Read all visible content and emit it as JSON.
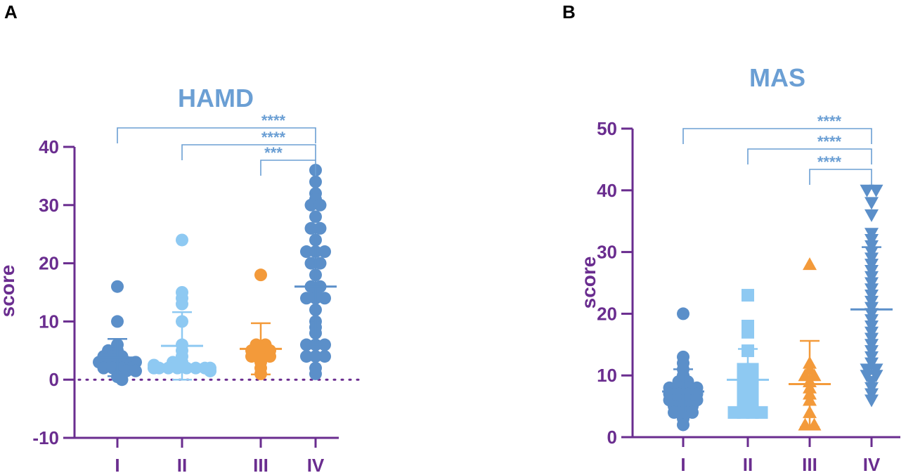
{
  "panels": {
    "a_label": "A",
    "b_label": "B"
  },
  "colors": {
    "axis": "#6a2d8f",
    "title": "#6b9fd4",
    "group1": "#5b8fc9",
    "group2": "#8ec9f2",
    "group3": "#f39a3a",
    "group4": "#5b8fc9",
    "bracket": "#6b9fd4"
  },
  "chart_data": [
    {
      "type": "scatter",
      "title": "HAMD",
      "xlabel": "",
      "ylabel": "score",
      "ylim": [
        -10,
        40
      ],
      "yticks": [
        -10,
        0,
        10,
        20,
        30,
        40
      ],
      "ytick_labels": [
        "-10",
        "0",
        "10",
        "20",
        "30",
        "40"
      ],
      "categories": [
        "I",
        "II",
        "III",
        "IV"
      ],
      "reference_line": 0,
      "series": [
        {
          "name": "I",
          "marker": "circle",
          "mean": 3.8,
          "sd_upper": 7,
          "sd_lower": 0.6,
          "values": [
            16,
            10,
            6,
            5,
            5,
            4.5,
            4,
            4,
            4,
            3.5,
            3.5,
            3,
            3,
            3,
            3,
            3,
            2.5,
            2.5,
            2,
            2,
            2,
            2,
            1.5,
            1.5,
            1,
            0.5,
            0
          ]
        },
        {
          "name": "II",
          "marker": "circle",
          "mean": 5.8,
          "sd_upper": 11.6,
          "sd_lower": 0,
          "values": [
            24,
            15,
            14,
            13,
            10,
            6,
            5,
            4,
            3,
            3,
            2.5,
            2,
            2,
            2,
            2,
            2,
            2,
            2,
            2,
            2,
            1.5,
            1.5
          ]
        },
        {
          "name": "III",
          "marker": "circle",
          "mean": 5.3,
          "sd_upper": 9.7,
          "sd_lower": 0.9,
          "values": [
            18,
            6,
            6,
            5,
            5,
            5,
            4,
            4,
            4,
            3,
            2,
            1
          ]
        },
        {
          "name": "IV",
          "marker": "circle",
          "mean": 16,
          "sd_upper": 25.8,
          "sd_lower": 6,
          "values": [
            36,
            34,
            32,
            31,
            30,
            30,
            28,
            26,
            26,
            24,
            22,
            22,
            22,
            20,
            20,
            18,
            16,
            16,
            15,
            14,
            14,
            14,
            12,
            10,
            9,
            8,
            6,
            6,
            6,
            4,
            4,
            4,
            2,
            1
          ]
        }
      ],
      "significance": [
        {
          "from": "I",
          "to": "IV",
          "label": "****"
        },
        {
          "from": "II",
          "to": "IV",
          "label": "****"
        },
        {
          "from": "III",
          "to": "IV",
          "label": "***"
        }
      ]
    },
    {
      "type": "scatter",
      "title": "MAS",
      "xlabel": "",
      "ylabel": "score",
      "ylim": [
        0,
        50
      ],
      "yticks": [
        0,
        10,
        20,
        30,
        40,
        50
      ],
      "ytick_labels": [
        "0",
        "10",
        "20",
        "30",
        "40",
        "50"
      ],
      "categories": [
        "I",
        "II",
        "III",
        "IV"
      ],
      "series": [
        {
          "name": "I",
          "marker": "circle",
          "mean": 7.4,
          "sd_upper": 11,
          "sd_lower": 3.8,
          "values": [
            20,
            13,
            12,
            11,
            10,
            9,
            9,
            8,
            8,
            8,
            8,
            7,
            7,
            7,
            7,
            6,
            6,
            6,
            6,
            5,
            5,
            5,
            4,
            4,
            4,
            3,
            2
          ]
        },
        {
          "name": "II",
          "marker": "square",
          "mean": 9.3,
          "sd_upper": 14.3,
          "sd_lower": 4.3,
          "values": [
            23,
            18,
            17,
            14,
            11,
            11,
            10,
            10,
            9,
            9,
            8,
            7,
            7,
            6,
            5,
            5,
            4,
            4,
            4,
            4
          ]
        },
        {
          "name": "III",
          "marker": "triangle-up",
          "mean": 8.6,
          "sd_upper": 15.6,
          "sd_lower": 1.6,
          "values": [
            28,
            12,
            11,
            10,
            10,
            9,
            8,
            7,
            6,
            4,
            2,
            2
          ]
        },
        {
          "name": "IV",
          "marker": "triangle-down",
          "mean": 20.7,
          "sd_upper": 30.8,
          "sd_lower": 10.6,
          "values": [
            40,
            40,
            38,
            36,
            33,
            32,
            31,
            30,
            29,
            28,
            27,
            26,
            25,
            24,
            23,
            22,
            21,
            20,
            19,
            18,
            17,
            16,
            15,
            14,
            13,
            12,
            11,
            11,
            10,
            10,
            9,
            8,
            7,
            6
          ]
        }
      ],
      "significance": [
        {
          "from": "I",
          "to": "IV",
          "label": "****"
        },
        {
          "from": "II",
          "to": "IV",
          "label": "****"
        },
        {
          "from": "III",
          "to": "IV",
          "label": "****"
        }
      ]
    }
  ]
}
